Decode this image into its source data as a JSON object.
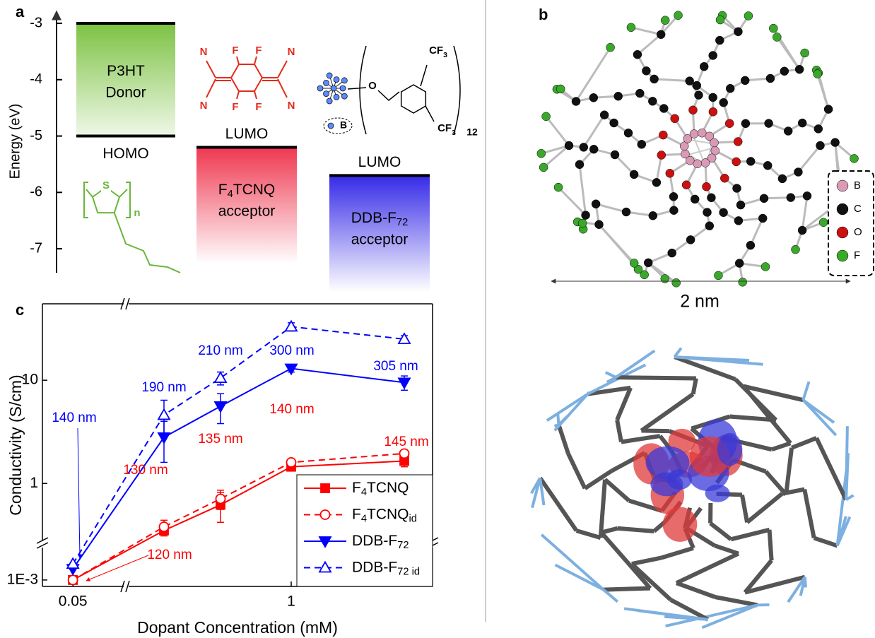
{
  "panels": {
    "a": "a",
    "b": "b",
    "c": "c"
  },
  "chart_data": [
    {
      "type": "level",
      "ylabel": "Energy (eV)",
      "ylim": [
        -7.4,
        -3
      ],
      "yticks": [
        -3,
        -4,
        -5,
        -6,
        -7
      ],
      "items": [
        {
          "name": [
            "P3HT"
          ],
          "role": "Donor",
          "level_label": "HOMO",
          "value": -5,
          "color": "#7cc242"
        },
        {
          "name": [
            "F",
            "4",
            "TCNQ"
          ],
          "role": "acceptor",
          "level_label": "LUMO",
          "value": -5.2,
          "color": "#ee2d47"
        },
        {
          "name": [
            "DDB-F",
            "72"
          ],
          "role": "acceptor",
          "level_label": "LUMO",
          "value": -5.7,
          "color": "#2b1fe6"
        }
      ]
    },
    {
      "type": "line",
      "xlabel": "Dopant Concentration (mM)",
      "ylabel": "Conductivity (S/cm)",
      "log_y": true,
      "xlim": [
        0.035,
        2
      ],
      "xbreak": [
        0.075,
        -0.15
      ],
      "xticks": [
        0.05,
        1
      ],
      "ylim": [
        0.0009,
        55
      ],
      "ybreak": [
        0.0017,
        0.28
      ],
      "yticks": [
        {
          "value": 0.001,
          "label": "1E-3"
        },
        1,
        10
      ],
      "x": [
        0.05,
        0.1,
        0.5,
        1,
        1.8
      ],
      "legend": "lower right",
      "series": [
        {
          "name": [
            "F",
            "4",
            "TCNQ"
          ],
          "color": "#ff0000",
          "marker": "square",
          "filled": true,
          "dashed": false,
          "values": [
            0.001,
            0.35,
            0.62,
            1.45,
            1.65
          ],
          "errors": [
            null,
            0.04,
            0.2,
            0.1,
            0.2
          ]
        },
        {
          "name": [
            "F",
            "4",
            "TCNQ",
            "id"
          ],
          "color": "#ff0000",
          "marker": "circle",
          "filled": false,
          "dashed": true,
          "values": [
            0.001,
            0.38,
            0.71,
            1.6,
            1.95
          ],
          "errors": [
            null,
            0.06,
            0.15,
            null,
            null
          ]
        },
        {
          "name": [
            "DDB-F",
            "72"
          ],
          "color": "#0000ff",
          "marker": "triangle-down",
          "filled": true,
          "dashed": false,
          "values": [
            0.0012,
            2.8,
            5.6,
            13,
            9.5
          ],
          "errors": [
            null,
            1.2,
            1.8,
            1.0,
            1.5
          ]
        },
        {
          "name": [
            "DDB-F",
            "72 id"
          ],
          "color": "#0000ff",
          "marker": "triangle-up",
          "filled": false,
          "dashed": true,
          "values": [
            0.0013,
            4.6,
            10.5,
            33,
            25
          ],
          "errors": [
            null,
            1.8,
            1.5,
            3,
            2
          ]
        }
      ],
      "annotations": [
        {
          "text": "120 nm",
          "color": "#ff0000"
        },
        {
          "text": "130 nm",
          "color": "#ff0000"
        },
        {
          "text": "135 nm",
          "color": "#ff0000"
        },
        {
          "text": "140 nm",
          "color": "#ff0000"
        },
        {
          "text": "145 nm",
          "color": "#ff0000"
        },
        {
          "text": "140 nm",
          "color": "#0000ff"
        },
        {
          "text": "190 nm",
          "color": "#0000ff"
        },
        {
          "text": "210 nm",
          "color": "#0000ff"
        },
        {
          "text": "300 nm",
          "color": "#0000ff"
        },
        {
          "text": "305 nm",
          "color": "#0000ff"
        }
      ]
    }
  ],
  "structures": {
    "f4tcnq": [
      "N",
      "F",
      "F",
      "N",
      "N",
      "F",
      "F",
      "N"
    ],
    "ddb": {
      "atom": "O",
      "cf3": [
        [
          "CF",
          "3"
        ],
        [
          "CF",
          "3"
        ]
      ],
      "repeat": "12",
      "core": "B"
    },
    "p3ht": {
      "atom": "S",
      "repeat": "n"
    }
  },
  "molecule": {
    "legend": [
      "B",
      "C",
      "O",
      "F"
    ],
    "scale_label": "2 nm"
  }
}
